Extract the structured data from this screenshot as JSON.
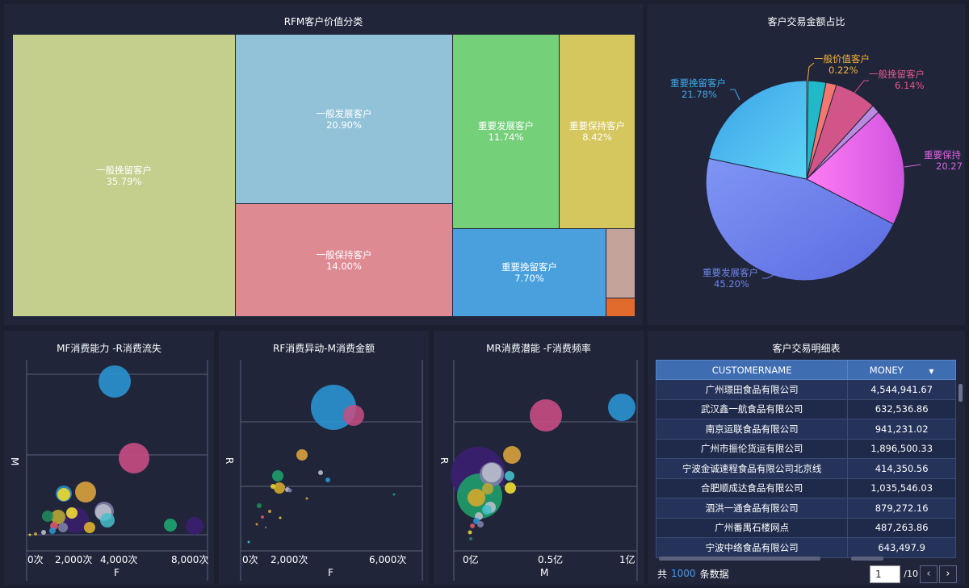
{
  "treemap": {
    "title": "RFM客户价值分类",
    "cells": [
      {
        "name": "一般挽留客户",
        "pct": "35.79%",
        "color": "#c4cf8d"
      },
      {
        "name": "一般发展客户",
        "pct": "20.90%",
        "color": "#92c2d8"
      },
      {
        "name": "一般保持客户",
        "pct": "14.00%",
        "color": "#de8a93"
      },
      {
        "name": "重要发展客户",
        "pct": "11.74%",
        "color": "#75d07a"
      },
      {
        "name": "重要保持客户",
        "pct": "8.42%",
        "color": "#d5c75d"
      },
      {
        "name": "重要挽留客户",
        "pct": "7.70%",
        "color": "#4aa0dc"
      },
      {
        "name": "",
        "pct": "",
        "color": "#c4a39b"
      },
      {
        "name": "",
        "pct": "",
        "color": "#e26a2c"
      }
    ]
  },
  "pie": {
    "title": "客户交易金额占比",
    "labels": [
      {
        "name": "一般价值客户",
        "pct": "0.22%",
        "color": "#f7b23b"
      },
      {
        "name": "一般挽留客户",
        "pct": "6.14%",
        "color": "#e0578a"
      },
      {
        "name": "重要保持",
        "pct": "20.27",
        "color": "#dd62e5"
      },
      {
        "name": "重要发展客户",
        "pct": "45.20%",
        "color": "#6f85ec"
      },
      {
        "name": "重要挽留客户",
        "pct": "21.78%",
        "color": "#3fa9e8"
      }
    ]
  },
  "chart_data": [
    {
      "type": "treemap",
      "title": "RFM客户价值分类",
      "categories": [
        "一般挽留客户",
        "一般发展客户",
        "一般保持客户",
        "重要发展客户",
        "重要保持客户",
        "重要挽留客户"
      ],
      "values": [
        35.79,
        20.9,
        14.0,
        11.74,
        8.42,
        7.7
      ]
    },
    {
      "type": "pie",
      "title": "客户交易金额占比",
      "categories": [
        "重要发展客户",
        "重要挽留客户",
        "一般价值客户",
        "一般挽留客户",
        "重要保持"
      ],
      "values": [
        45.2,
        21.78,
        0.22,
        6.14,
        20.27
      ]
    },
    {
      "type": "scatter",
      "title": "MF消费能力 -R消费流失",
      "xlabel": "F",
      "ylabel": "M",
      "xticks": [
        "0次",
        "2,000次",
        "4,000次",
        "8,000次"
      ]
    },
    {
      "type": "scatter",
      "title": "RF消费异动-M消费金额",
      "xlabel": "F",
      "ylabel": "R",
      "xticks": [
        "0次",
        "2,000次",
        "6,000次"
      ]
    },
    {
      "type": "scatter",
      "title": "MR消费潜能 -F消费频率",
      "xlabel": "M",
      "ylabel": "R",
      "xticks": [
        "0亿",
        "0.5亿",
        "1亿"
      ]
    }
  ],
  "scatter_mf": {
    "title": "MF消费能力 -R消费流失",
    "xlabel": "F",
    "ylabel": "M",
    "ticks": [
      "0次",
      "2,000次",
      "4,000次",
      "8,000次"
    ]
  },
  "scatter_rf": {
    "title": "RF消费异动-M消费金额",
    "xlabel": "F",
    "ylabel": "R",
    "ticks": [
      "0次",
      "2,000次",
      "6,000次"
    ]
  },
  "scatter_mr": {
    "title": "MR消费潜能 -F消费频率",
    "xlabel": "M",
    "ylabel": "R",
    "ticks": [
      "0亿",
      "0.5亿",
      "1亿"
    ]
  },
  "table": {
    "title": "客户交易明细表",
    "col1": "CUSTOMERNAME",
    "col2": "MONEY",
    "rows": [
      {
        "name": "广州璟田食品有限公司",
        "money": "4,544,941.67"
      },
      {
        "name": "武汉鑫一航食品有限公司",
        "money": "632,536.86"
      },
      {
        "name": "南京运联食品有限公司",
        "money": "941,231.02"
      },
      {
        "name": "广州市振伦货运有限公司",
        "money": "1,896,500.33"
      },
      {
        "name": "宁波金诚速程食品有限公司北京线",
        "money": "414,350.56"
      },
      {
        "name": "合肥顺成达食品有限公司",
        "money": "1,035,546.03"
      },
      {
        "name": "泗洪一通食品有限公司",
        "money": "879,272.16"
      },
      {
        "name": "广州番禺石楼网点",
        "money": "487,263.86"
      },
      {
        "name": "宁波中络食品有限公司",
        "money": "643,497.9"
      }
    ],
    "footer": {
      "prefix": "共",
      "count": "1000",
      "suffix": "条数据",
      "page": "1",
      "pages": "/10"
    }
  }
}
